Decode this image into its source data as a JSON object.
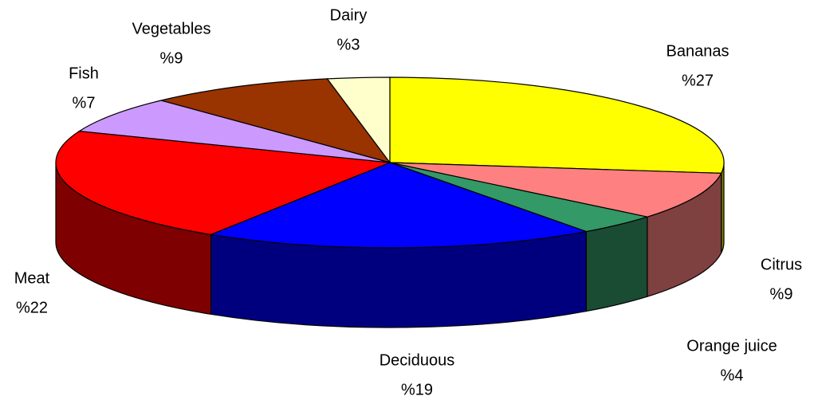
{
  "chart_data": {
    "type": "pie",
    "categories": [
      "Bananas",
      "Citrus",
      "Orange juice",
      "Deciduous",
      "Meat",
      "Fish",
      "Vegetables",
      "Dairy"
    ],
    "values": [
      27,
      9,
      4,
      19,
      22,
      7,
      9,
      3
    ],
    "value_labels": [
      "%27",
      "%9",
      "%4",
      "%19",
      "%22",
      "%7",
      "%9",
      "%3"
    ],
    "colors": [
      "#ffff00",
      "#ff8080",
      "#339966",
      "#0000ff",
      "#ff0000",
      "#cc99ff",
      "#993300",
      "#ffffcc"
    ]
  }
}
